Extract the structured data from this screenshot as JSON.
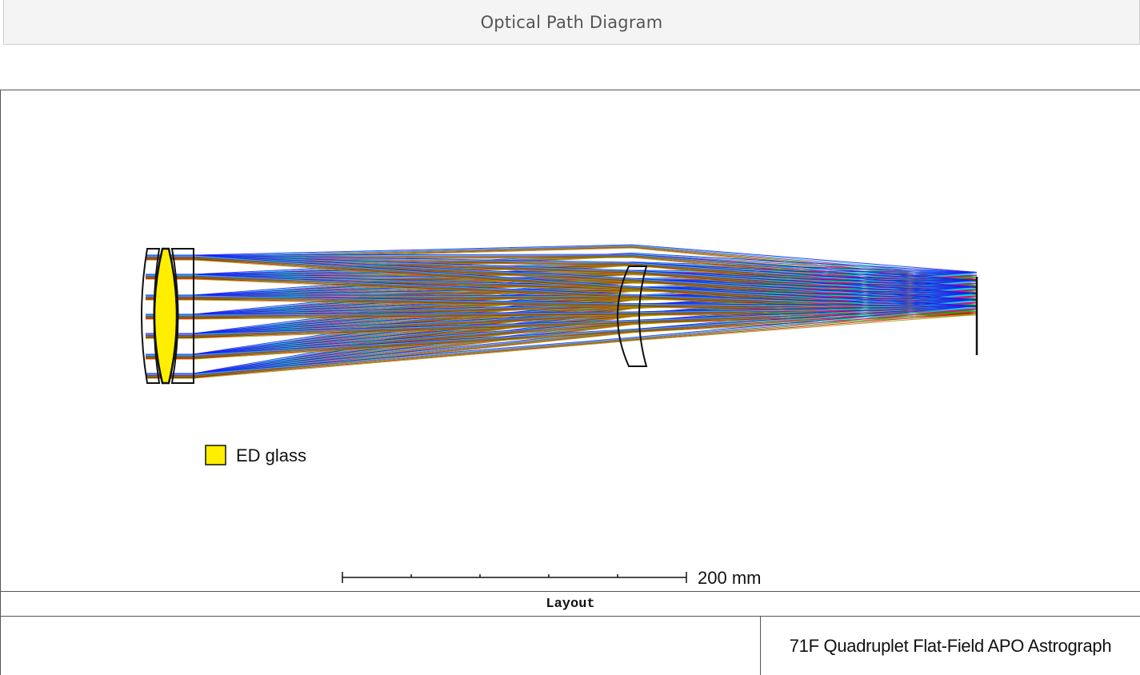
{
  "header": {
    "title": "Optical Path Diagram"
  },
  "diagram": {
    "legend": {
      "label": "ED glass",
      "swatch_color": "#ffee00"
    },
    "scale_bar": {
      "label": "200 mm",
      "divisions": 5
    },
    "ray_colors": [
      "#1c1cf0",
      "#00d8e8",
      "#e8008a",
      "#00c800",
      "#e8001c",
      "#9a9a00"
    ],
    "ray_bundles": 6,
    "lens_outline_color": "#111111",
    "elements": [
      "front-meniscus-icon",
      "ed-biconvex-lens-icon",
      "rear-element-icon",
      "field-flattener-icon",
      "image-plane-icon"
    ]
  },
  "layout_label": "Layout",
  "footer": {
    "product_name": "71F Quadruplet Flat-Field APO Astrograph"
  }
}
